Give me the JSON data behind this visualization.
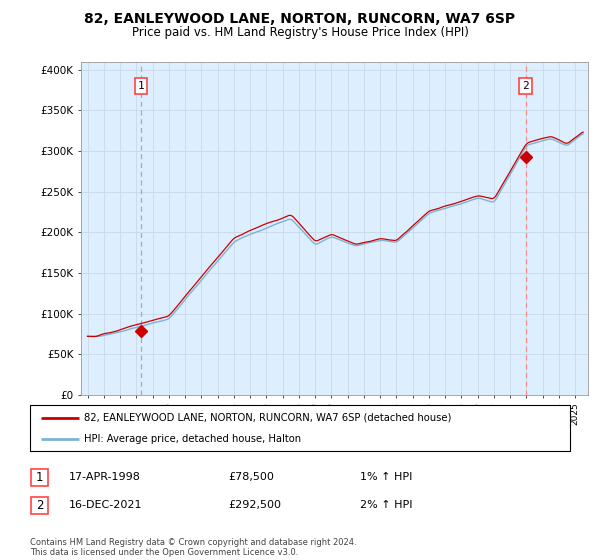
{
  "title_line1": "82, EANLEYWOOD LANE, NORTON, RUNCORN, WA7 6SP",
  "title_line2": "Price paid vs. HM Land Registry's House Price Index (HPI)",
  "ylabel_ticks": [
    "£0",
    "£50K",
    "£100K",
    "£150K",
    "£200K",
    "£250K",
    "£300K",
    "£350K",
    "£400K"
  ],
  "ytick_values": [
    0,
    50000,
    100000,
    150000,
    200000,
    250000,
    300000,
    350000,
    400000
  ],
  "ylim": [
    0,
    410000
  ],
  "xlim_start": 1994.6,
  "xlim_end": 2025.8,
  "hpi_color": "#7bb4d4",
  "price_color": "#cc0000",
  "point1_x": 1998.29,
  "point1_y": 78500,
  "point2_x": 2021.96,
  "point2_y": 292500,
  "point1_label": "1",
  "point2_label": "2",
  "legend_line1": "82, EANLEYWOOD LANE, NORTON, RUNCORN, WA7 6SP (detached house)",
  "legend_line2": "HPI: Average price, detached house, Halton",
  "table_row1": [
    "1",
    "17-APR-1998",
    "£78,500",
    "1% ↑ HPI"
  ],
  "table_row2": [
    "2",
    "16-DEC-2021",
    "£292,500",
    "2% ↑ HPI"
  ],
  "footnote": "Contains HM Land Registry data © Crown copyright and database right 2024.\nThis data is licensed under the Open Government Licence v3.0.",
  "vline1_color": "#aaaaaa",
  "vline2_color": "#ff8888",
  "box_color": "#ff4444",
  "bg_fill_color": "#ddeeff",
  "background_color": "#ffffff",
  "grid_color": "#c8d8e8"
}
